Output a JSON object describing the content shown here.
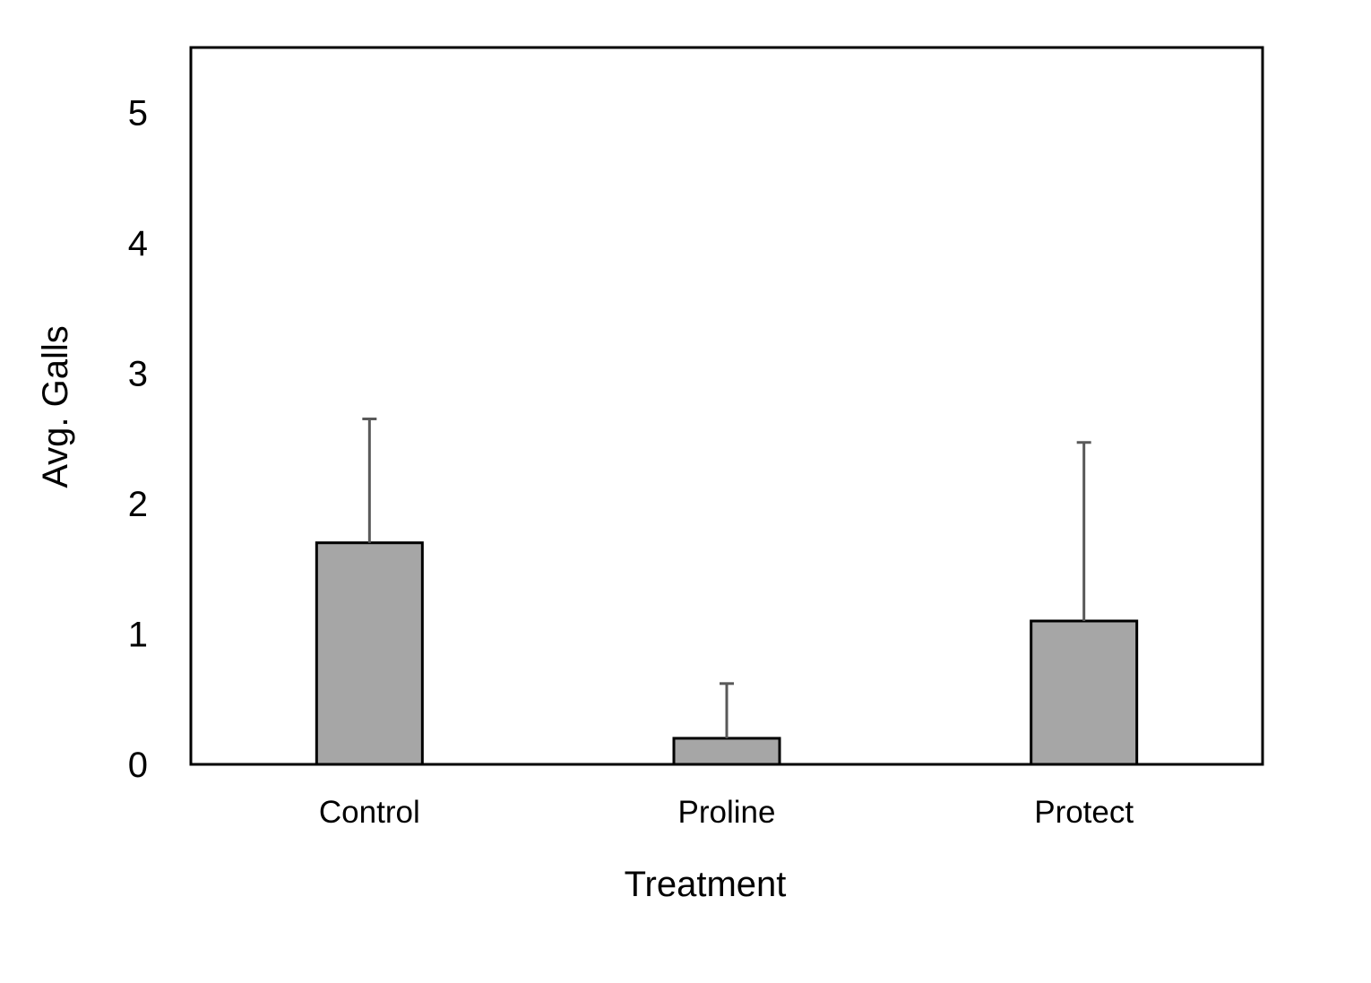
{
  "chart_data": {
    "type": "bar",
    "title": "",
    "xlabel": "Treatment",
    "ylabel": "Avg. Galls",
    "categories": [
      "Control",
      "Proline",
      "Protect"
    ],
    "values": [
      1.7,
      0.2,
      1.1
    ],
    "error_upper": [
      0.95,
      0.42,
      1.37
    ],
    "ylim": [
      0,
      5.5
    ],
    "yticks": [
      0,
      1,
      2,
      3,
      4,
      5
    ],
    "ytick_labels": [
      "0",
      "1",
      "2",
      "3",
      "4",
      "5"
    ],
    "grid": false,
    "legend": "none",
    "colors": {
      "bar_fill": "#a6a6a6",
      "bar_stroke": "#000000",
      "error_bar": "#595959",
      "frame": "#000000"
    }
  }
}
